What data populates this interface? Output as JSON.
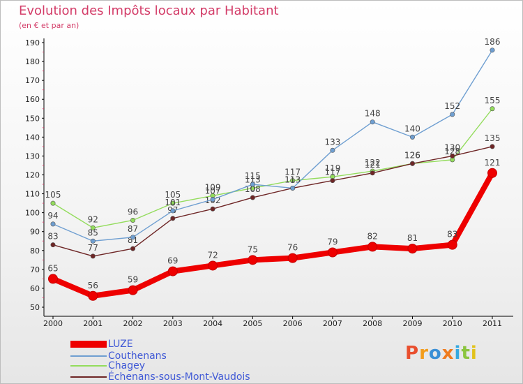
{
  "title": "Evolution des Impôts locaux par Habitant",
  "subtitle": "(en € et par an)",
  "logo_text": "Proxiti",
  "colors": {
    "title": "#d33c68",
    "legend_text": "#4059d6",
    "logo": [
      "#e94f2e",
      "#f39c1b",
      "#3a8fd6",
      "#ef7b1e",
      "#35a9e0",
      "#8bc53f",
      "#e2c21c"
    ]
  },
  "chart_data": {
    "type": "line",
    "title": "Evolution des Impôts locaux par Habitant",
    "subtitle": "(en € et par an)",
    "x": [
      "2000",
      "2001",
      "2002",
      "2003",
      "2004",
      "2005",
      "2006",
      "2007",
      "2008",
      "2009",
      "2010",
      "2011"
    ],
    "ylim": [
      50,
      190
    ],
    "yticks": [
      50,
      60,
      70,
      80,
      90,
      100,
      110,
      120,
      130,
      140,
      150,
      160,
      170,
      180,
      190
    ],
    "grid": false,
    "legend_position": "bottom-left",
    "series": [
      {
        "name": "LUZE",
        "color": "#ee0000",
        "values": [
          65,
          56,
          59,
          69,
          72,
          75,
          76,
          79,
          82,
          81,
          83,
          121
        ]
      },
      {
        "name": "Couthenans",
        "color": "#6f9fd1",
        "values": [
          94,
          85,
          87,
          101,
          107,
          115,
          113,
          133,
          148,
          140,
          152,
          186
        ]
      },
      {
        "name": "Chagey",
        "color": "#93dc5c",
        "values": [
          105,
          92,
          96,
          105,
          109,
          113,
          117,
          119,
          122,
          126,
          128,
          155
        ]
      },
      {
        "name": "Échenans-sous-Mont-Vaudois",
        "color": "#6e2626",
        "values": [
          83,
          77,
          81,
          97,
          102,
          108,
          113,
          117,
          121,
          126,
          130,
          135
        ]
      }
    ]
  }
}
